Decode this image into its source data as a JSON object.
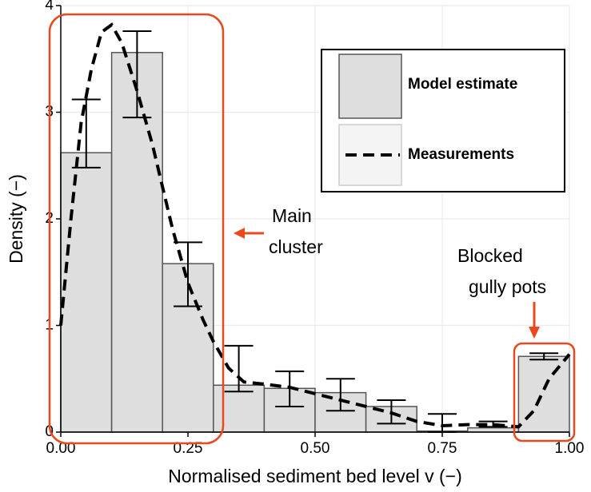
{
  "chart_data": {
    "type": "histogram",
    "xlabel": "Normalised sediment bed level v (−)",
    "ylabel": "Density (−)",
    "bins": [
      0,
      0.1,
      0.2,
      0.3,
      0.4,
      0.5,
      0.6,
      0.7,
      0.8,
      0.9,
      1.0
    ],
    "values": [
      2.62,
      3.56,
      1.58,
      0.44,
      0.41,
      0.37,
      0.24,
      0.01,
      0.04,
      0.71
    ],
    "errors_low": [
      2.48,
      2.95,
      1.18,
      0.38,
      0.24,
      0.2,
      0.08,
      0.0,
      0.05,
      0.68
    ],
    "errors_high": [
      3.12,
      3.76,
      1.78,
      0.81,
      0.57,
      0.5,
      0.3,
      0.17,
      0.1,
      0.74
    ],
    "color": "#dedede",
    "series": [
      {
        "name": "Model estimate"
      },
      {
        "name": "Measurements",
        "x": [
          0,
          0.02,
          0.04,
          0.06,
          0.08,
          0.1,
          0.12,
          0.15,
          0.18,
          0.2,
          0.22,
          0.25,
          0.28,
          0.3,
          0.33,
          0.36,
          0.4,
          0.45,
          0.5,
          0.55,
          0.6,
          0.65,
          0.7,
          0.75,
          0.8,
          0.85,
          0.9,
          0.93,
          0.96,
          1.0
        ],
        "values": [
          1.0,
          2.0,
          2.9,
          3.4,
          3.75,
          3.82,
          3.65,
          3.2,
          2.7,
          2.3,
          1.9,
          1.4,
          1.05,
          0.85,
          0.6,
          0.47,
          0.45,
          0.42,
          0.36,
          0.3,
          0.24,
          0.18,
          0.1,
          0.06,
          0.07,
          0.07,
          0.05,
          0.2,
          0.5,
          0.73
        ]
      }
    ],
    "xlim": [
      0,
      1.0
    ],
    "ylim": [
      0,
      4
    ],
    "xticks": [
      {
        "value": 0,
        "label": "0.00"
      },
      {
        "value": 0.25,
        "label": "0.25"
      },
      {
        "value": 0.5,
        "label": "0.50"
      },
      {
        "value": 0.75,
        "label": "0.75"
      },
      {
        "value": 1.0,
        "label": "1.00"
      }
    ],
    "yticks": [
      0,
      1,
      2,
      3,
      4
    ],
    "grid": true,
    "annotations": [
      [
        "Main",
        "cluster"
      ],
      [
        "Blocked",
        "gully pots"
      ]
    ]
  }
}
